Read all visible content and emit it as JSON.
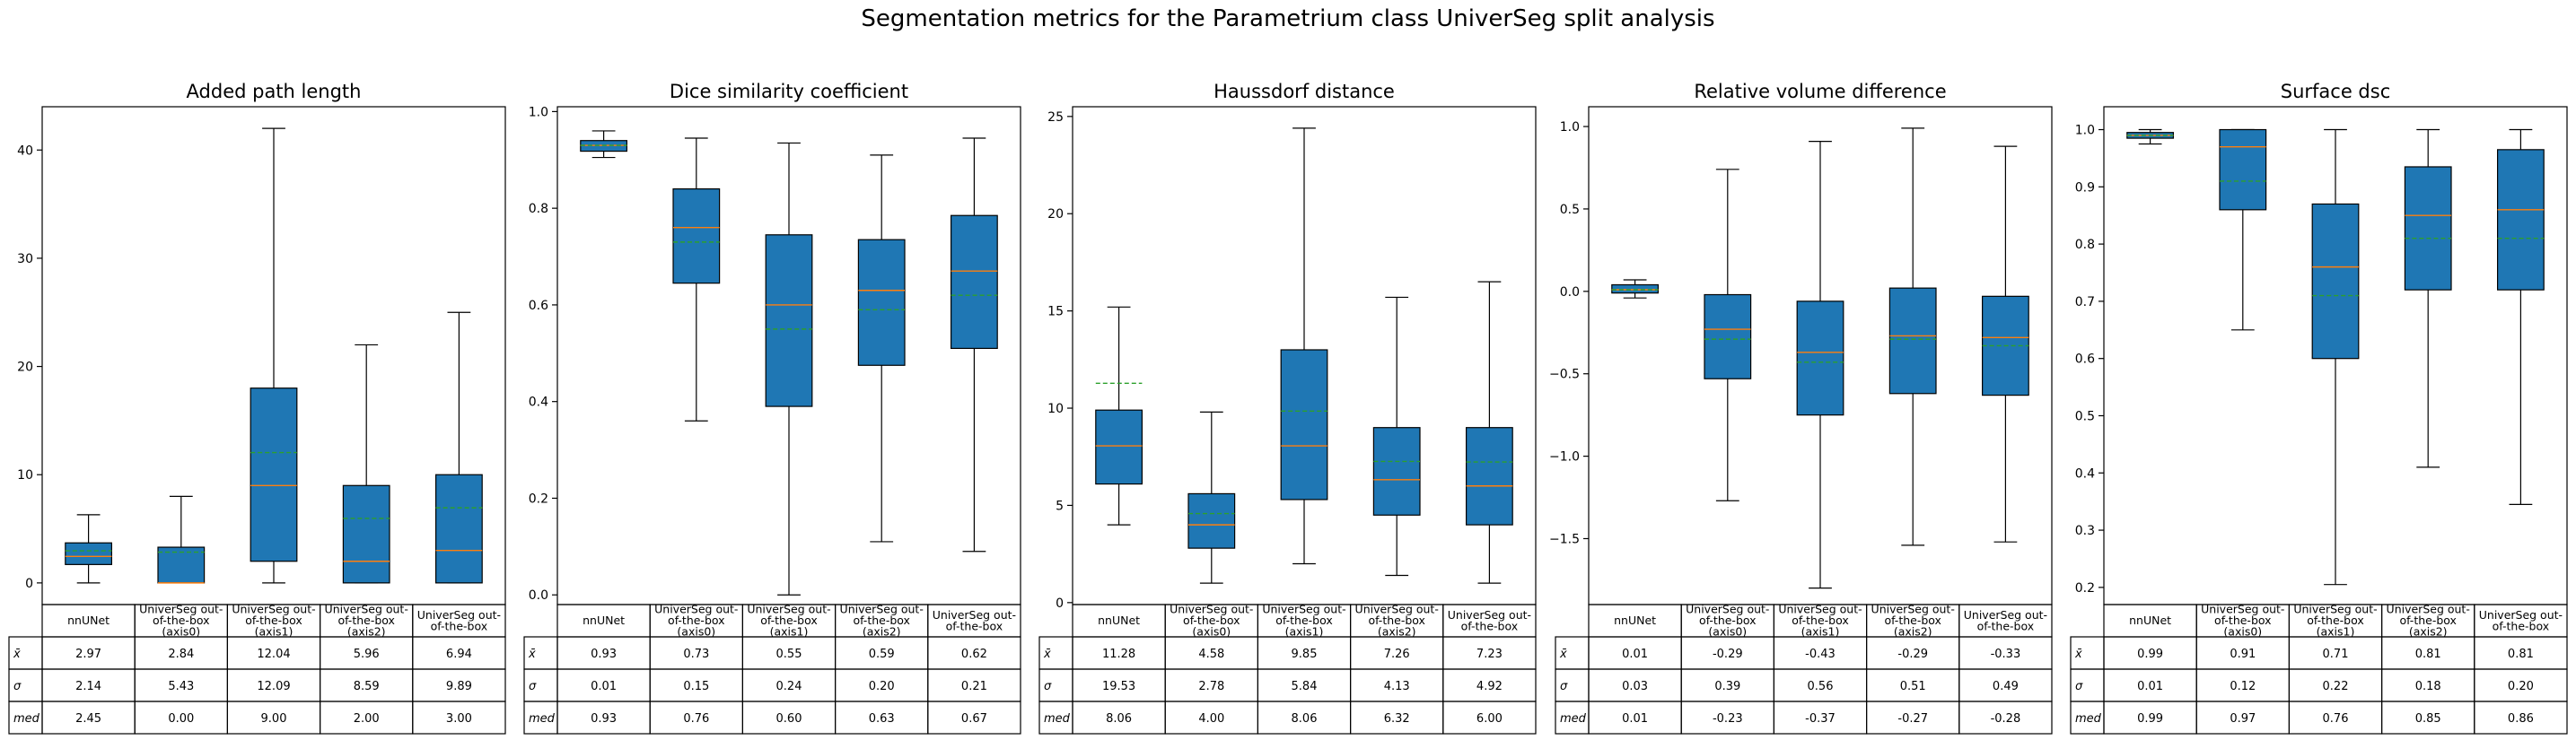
{
  "suptitle": "Segmentation metrics for the Parametrium class UniverSeg split analysis",
  "chart_data": [
    {
      "type": "box",
      "title": "Added path length",
      "categories": [
        "nnUNet",
        "UniverSeg out-of-the-box (axis0)",
        "UniverSeg out-of-the-box (axis1)",
        "UniverSeg out-of-the-box (axis2)",
        "UniverSeg out-of-the-box"
      ],
      "category_labels": [
        [
          "nnUNet"
        ],
        [
          "UniverSeg out-",
          "of-the-box",
          "(axis0)"
        ],
        [
          "UniverSeg out-",
          "of-the-box",
          "(axis1)"
        ],
        [
          "UniverSeg out-",
          "of-the-box",
          "(axis2)"
        ],
        [
          "UniverSeg out-",
          "of-the-box"
        ]
      ],
      "ylim": [
        -2.0,
        44.0
      ],
      "yticks": [
        0,
        10,
        20,
        30,
        40
      ],
      "ytick_labels": [
        "0",
        "10",
        "20",
        "30",
        "40"
      ],
      "boxes": [
        {
          "whislo": 0.0,
          "q1": 1.7,
          "med": 2.45,
          "q3": 3.7,
          "whishi": 6.3,
          "mean": 2.97
        },
        {
          "whislo": 0.0,
          "q1": 0.0,
          "med": 0.0,
          "q3": 3.3,
          "whishi": 8.0,
          "mean": 2.84
        },
        {
          "whislo": 0.0,
          "q1": 2.0,
          "med": 9.0,
          "q3": 18.0,
          "whishi": 42.0,
          "mean": 12.04
        },
        {
          "whislo": 0.0,
          "q1": 0.0,
          "med": 2.0,
          "q3": 9.0,
          "whishi": 22.0,
          "mean": 5.96
        },
        {
          "whislo": 0.0,
          "q1": 0.0,
          "med": 3.0,
          "q3": 10.0,
          "whishi": 25.0,
          "mean": 6.94
        }
      ],
      "table": {
        "row_labels": [
          "x̄",
          "σ",
          "med"
        ],
        "rows": [
          [
            "2.97",
            "2.84",
            "12.04",
            "5.96",
            "6.94"
          ],
          [
            "2.14",
            "5.43",
            "12.09",
            "8.59",
            "9.89"
          ],
          [
            "2.45",
            "0.00",
            "9.00",
            "2.00",
            "3.00"
          ]
        ]
      }
    },
    {
      "type": "box",
      "title": "Dice similarity coefficient",
      "categories": [
        "nnUNet",
        "UniverSeg out-of-the-box (axis0)",
        "UniverSeg out-of-the-box (axis1)",
        "UniverSeg out-of-the-box (axis2)",
        "UniverSeg out-of-the-box"
      ],
      "category_labels": [
        [
          "nnUNet"
        ],
        [
          "UniverSeg out-",
          "of-the-box",
          "(axis0)"
        ],
        [
          "UniverSeg out-",
          "of-the-box",
          "(axis1)"
        ],
        [
          "UniverSeg out-",
          "of-the-box",
          "(axis2)"
        ],
        [
          "UniverSeg out-",
          "of-the-box"
        ]
      ],
      "ylim": [
        -0.02,
        1.01
      ],
      "yticks": [
        0.0,
        0.2,
        0.4,
        0.6,
        0.8,
        1.0
      ],
      "ytick_labels": [
        "0.0",
        "0.2",
        "0.4",
        "0.6",
        "0.8",
        "1.0"
      ],
      "boxes": [
        {
          "whislo": 0.905,
          "q1": 0.918,
          "med": 0.93,
          "q3": 0.94,
          "whishi": 0.96,
          "mean": 0.93
        },
        {
          "whislo": 0.36,
          "q1": 0.645,
          "med": 0.76,
          "q3": 0.84,
          "whishi": 0.945,
          "mean": 0.73
        },
        {
          "whislo": 0.0,
          "q1": 0.39,
          "med": 0.6,
          "q3": 0.745,
          "whishi": 0.935,
          "mean": 0.55
        },
        {
          "whislo": 0.11,
          "q1": 0.475,
          "med": 0.63,
          "q3": 0.735,
          "whishi": 0.91,
          "mean": 0.59
        },
        {
          "whislo": 0.09,
          "q1": 0.51,
          "med": 0.67,
          "q3": 0.785,
          "whishi": 0.945,
          "mean": 0.62
        }
      ],
      "table": {
        "row_labels": [
          "x̄",
          "σ",
          "med"
        ],
        "rows": [
          [
            "0.93",
            "0.73",
            "0.55",
            "0.59",
            "0.62"
          ],
          [
            "0.01",
            "0.15",
            "0.24",
            "0.20",
            "0.21"
          ],
          [
            "0.93",
            "0.76",
            "0.60",
            "0.63",
            "0.67"
          ]
        ]
      }
    },
    {
      "type": "box",
      "title": "Haussdorf distance",
      "categories": [
        "nnUNet",
        "UniverSeg out-of-the-box (axis0)",
        "UniverSeg out-of-the-box (axis1)",
        "UniverSeg out-of-the-box (axis2)",
        "UniverSeg out-of-the-box"
      ],
      "category_labels": [
        [
          "nnUNet"
        ],
        [
          "UniverSeg out-",
          "of-the-box",
          "(axis0)"
        ],
        [
          "UniverSeg out-",
          "of-the-box",
          "(axis1)"
        ],
        [
          "UniverSeg out-",
          "of-the-box",
          "(axis2)"
        ],
        [
          "UniverSeg out-",
          "of-the-box"
        ]
      ],
      "ylim": [
        -0.1,
        25.5
      ],
      "yticks": [
        0,
        5,
        10,
        15,
        20,
        25
      ],
      "ytick_labels": [
        "0",
        "5",
        "10",
        "15",
        "20",
        "25"
      ],
      "boxes": [
        {
          "whislo": 4.0,
          "q1": 6.1,
          "med": 8.06,
          "q3": 9.9,
          "whishi": 15.2,
          "mean": 11.28
        },
        {
          "whislo": 1.0,
          "q1": 2.8,
          "med": 4.0,
          "q3": 5.6,
          "whishi": 9.8,
          "mean": 4.58
        },
        {
          "whislo": 2.0,
          "q1": 5.3,
          "med": 8.06,
          "q3": 13.0,
          "whishi": 24.4,
          "mean": 9.85
        },
        {
          "whislo": 1.4,
          "q1": 4.5,
          "med": 6.32,
          "q3": 9.0,
          "whishi": 15.7,
          "mean": 7.26
        },
        {
          "whislo": 1.0,
          "q1": 4.0,
          "med": 6.0,
          "q3": 9.0,
          "whishi": 16.5,
          "mean": 7.23
        }
      ],
      "table": {
        "row_labels": [
          "x̄",
          "σ",
          "med"
        ],
        "rows": [
          [
            "11.28",
            "4.58",
            "9.85",
            "7.26",
            "7.23"
          ],
          [
            "19.53",
            "2.78",
            "5.84",
            "4.13",
            "4.92"
          ],
          [
            "8.06",
            "4.00",
            "8.06",
            "6.32",
            "6.00"
          ]
        ]
      }
    },
    {
      "type": "box",
      "title": "Relative volume difference",
      "categories": [
        "nnUNet",
        "UniverSeg out-of-the-box (axis0)",
        "UniverSeg out-of-the-box (axis1)",
        "UniverSeg out-of-the-box (axis2)",
        "UniverSeg out-of-the-box"
      ],
      "category_labels": [
        [
          "nnUNet"
        ],
        [
          "UniverSeg out-",
          "of-the-box",
          "(axis0)"
        ],
        [
          "UniverSeg out-",
          "of-the-box",
          "(axis1)"
        ],
        [
          "UniverSeg out-",
          "of-the-box",
          "(axis2)"
        ],
        [
          "UniverSeg out-",
          "of-the-box"
        ]
      ],
      "ylim": [
        -1.9,
        1.12
      ],
      "yticks": [
        -1.5,
        -1.0,
        -0.5,
        0.0,
        0.5,
        1.0
      ],
      "ytick_labels": [
        "−1.5",
        "−1.0",
        "−0.5",
        "0.0",
        "0.5",
        "1.0"
      ],
      "boxes": [
        {
          "whislo": -0.04,
          "q1": -0.01,
          "med": 0.01,
          "q3": 0.04,
          "whishi": 0.07,
          "mean": 0.01
        },
        {
          "whislo": -1.27,
          "q1": -0.53,
          "med": -0.23,
          "q3": -0.02,
          "whishi": 0.74,
          "mean": -0.29
        },
        {
          "whislo": -1.8,
          "q1": -0.75,
          "med": -0.37,
          "q3": -0.06,
          "whishi": 0.91,
          "mean": -0.43
        },
        {
          "whislo": -1.54,
          "q1": -0.62,
          "med": -0.27,
          "q3": 0.02,
          "whishi": 0.99,
          "mean": -0.29
        },
        {
          "whislo": -1.52,
          "q1": -0.63,
          "med": -0.28,
          "q3": -0.03,
          "whishi": 0.88,
          "mean": -0.33
        }
      ],
      "table": {
        "row_labels": [
          "x̄",
          "σ",
          "med"
        ],
        "rows": [
          [
            "0.01",
            "-0.29",
            "-0.43",
            "-0.29",
            "-0.33"
          ],
          [
            "0.03",
            "0.39",
            "0.56",
            "0.51",
            "0.49"
          ],
          [
            "0.01",
            "-0.23",
            "-0.37",
            "-0.27",
            "-0.28"
          ]
        ]
      }
    },
    {
      "type": "box",
      "title": "Surface dsc",
      "categories": [
        "nnUNet",
        "UniverSeg out-of-the-box (axis0)",
        "UniverSeg out-of-the-box (axis1)",
        "UniverSeg out-of-the-box (axis2)",
        "UniverSeg out-of-the-box"
      ],
      "category_labels": [
        [
          "nnUNet"
        ],
        [
          "UniverSeg out-",
          "of-the-box",
          "(axis0)"
        ],
        [
          "UniverSeg out-",
          "of-the-box",
          "(axis1)"
        ],
        [
          "UniverSeg out-",
          "of-the-box",
          "(axis2)"
        ],
        [
          "UniverSeg out-",
          "of-the-box"
        ]
      ],
      "ylim": [
        0.17,
        1.04
      ],
      "yticks": [
        0.2,
        0.3,
        0.4,
        0.5,
        0.6,
        0.7,
        0.8,
        0.9,
        1.0
      ],
      "ytick_labels": [
        "0.2",
        "0.3",
        "0.4",
        "0.5",
        "0.6",
        "0.7",
        "0.8",
        "0.9",
        "1.0"
      ],
      "boxes": [
        {
          "whislo": 0.975,
          "q1": 0.985,
          "med": 0.99,
          "q3": 0.995,
          "whishi": 1.0,
          "mean": 0.99
        },
        {
          "whislo": 0.65,
          "q1": 0.86,
          "med": 0.97,
          "q3": 1.0,
          "whishi": 1.0,
          "mean": 0.91
        },
        {
          "whislo": 0.205,
          "q1": 0.6,
          "med": 0.76,
          "q3": 0.87,
          "whishi": 1.0,
          "mean": 0.71
        },
        {
          "whislo": 0.41,
          "q1": 0.72,
          "med": 0.85,
          "q3": 0.935,
          "whishi": 1.0,
          "mean": 0.81
        },
        {
          "whislo": 0.345,
          "q1": 0.72,
          "med": 0.86,
          "q3": 0.965,
          "whishi": 1.0,
          "mean": 0.81
        }
      ],
      "table": {
        "row_labels": [
          "x̄",
          "σ",
          "med"
        ],
        "rows": [
          [
            "0.99",
            "0.91",
            "0.71",
            "0.81",
            "0.81"
          ],
          [
            "0.01",
            "0.12",
            "0.22",
            "0.18",
            "0.20"
          ],
          [
            "0.99",
            "0.97",
            "0.76",
            "0.85",
            "0.86"
          ]
        ]
      }
    }
  ],
  "colors": {
    "box_fill": "#1f77b4",
    "median_line": "#ff7f0e",
    "mean_line": "#2ca02c",
    "axis": "#000000",
    "background": "#ffffff"
  }
}
